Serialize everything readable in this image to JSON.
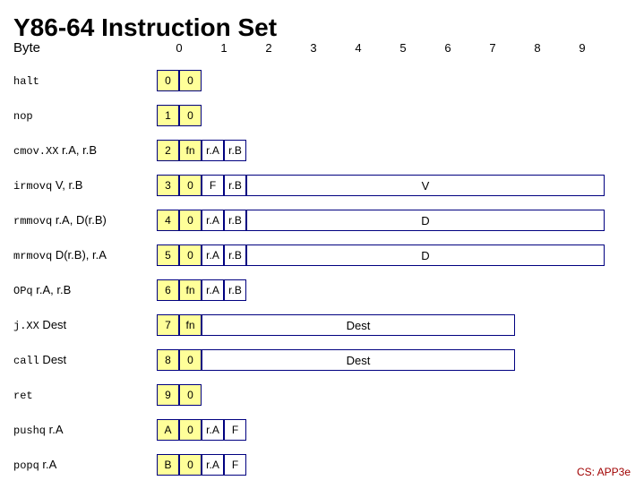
{
  "title": "Y86-64 Instruction Set",
  "byte_label": "Byte",
  "col_numbers": [
    "0",
    "1",
    "2",
    "3",
    "4",
    "5",
    "6",
    "7",
    "8",
    "9"
  ],
  "rows": {
    "halt": {
      "label_mono": "halt",
      "label_param": "",
      "cells": [
        "0",
        "0"
      ]
    },
    "nop": {
      "label_mono": "nop",
      "label_param": "",
      "cells": [
        "1",
        "0"
      ]
    },
    "cmov": {
      "label_mono": "cmov.XX",
      "label_param": " r.A, r.B",
      "cells": [
        "2",
        "fn",
        "r.A",
        "r.B"
      ]
    },
    "irmovq": {
      "label_mono": "irmovq",
      "label_param": " V, r.B",
      "cells": [
        "3",
        "0",
        "F",
        "r.B"
      ],
      "long": "V"
    },
    "rmmovq": {
      "label_mono": "rmmovq",
      "label_param": " r.A, D(r.B)",
      "cells": [
        "4",
        "0",
        "r.A",
        "r.B"
      ],
      "long": "D"
    },
    "mrmovq": {
      "label_mono": "mrmovq",
      "label_param": " D(r.B), r.A",
      "cells": [
        "5",
        "0",
        "r.A",
        "r.B"
      ],
      "long": "D"
    },
    "opq": {
      "label_mono": "OPq",
      "label_param": " r.A, r.B",
      "cells": [
        "6",
        "fn",
        "r.A",
        "r.B"
      ]
    },
    "jxx": {
      "label_mono": "j.XX",
      "label_param": " Dest",
      "cells": [
        "7",
        "fn"
      ],
      "long": "Dest",
      "long_w": 350
    },
    "call": {
      "label_mono": "call",
      "label_param": " Dest",
      "cells": [
        "8",
        "0"
      ],
      "long": "Dest",
      "long_w": 350
    },
    "ret": {
      "label_mono": "ret",
      "label_param": "",
      "cells": [
        "9",
        "0"
      ]
    },
    "pushq": {
      "label_mono": "pushq",
      "label_param": " r.A",
      "cells": [
        "A",
        "0",
        "r.A",
        "F"
      ]
    },
    "popq": {
      "label_mono": "popq",
      "label_param": " r.A",
      "cells": [
        "B",
        "0",
        "r.A",
        "F"
      ]
    }
  },
  "footer": "CS: APP3e",
  "colors": {
    "yellow": "#ffff99",
    "white": "#ffffff",
    "border": "#000080",
    "footer_text": "#a00000"
  }
}
